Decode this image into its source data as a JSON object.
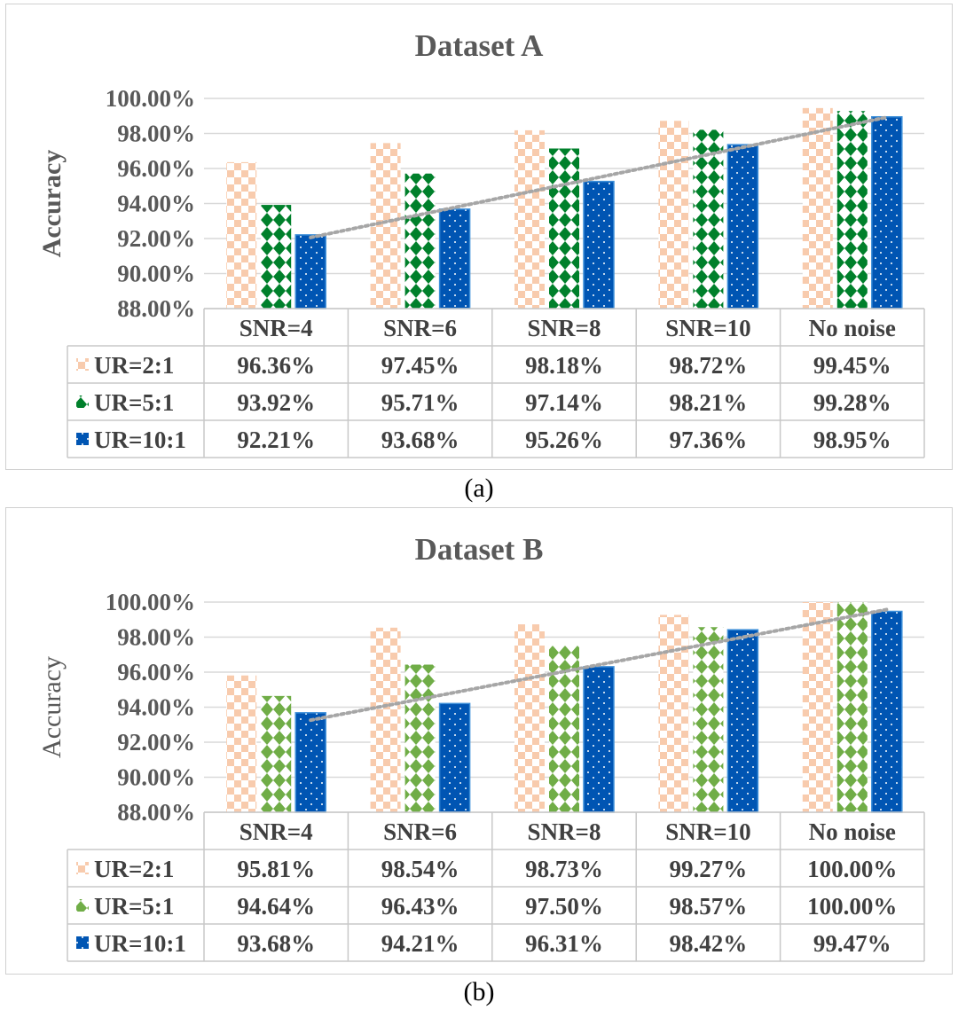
{
  "captions": [
    "(a)",
    "(b)"
  ],
  "chart_data": [
    {
      "type": "bar",
      "title": "Dataset A",
      "xlabel": "",
      "ylabel": "Accuracy",
      "ylim": [
        88,
        100
      ],
      "yticks": [
        "88.00%",
        "90.00%",
        "92.00%",
        "94.00%",
        "96.00%",
        "98.00%",
        "100.00%"
      ],
      "categories": [
        "SNR=4",
        "SNR=6",
        "SNR=8",
        "SNR=10",
        "No noise"
      ],
      "series": [
        {
          "name": "UR=2:1",
          "values": [
            96.36,
            97.45,
            98.18,
            98.72,
            99.45
          ],
          "labels": [
            "96.36%",
            "97.45%",
            "98.18%",
            "98.72%",
            "99.45%"
          ],
          "color": "#f8cbad",
          "pattern": "checker"
        },
        {
          "name": "UR=5:1",
          "values": [
            93.92,
            95.71,
            97.14,
            98.21,
            99.28
          ],
          "labels": [
            "93.92%",
            "95.71%",
            "97.14%",
            "98.21%",
            "99.28%"
          ],
          "color": "#00802b",
          "pattern": "diamond"
        },
        {
          "name": "UR=10:1",
          "values": [
            92.21,
            93.68,
            95.26,
            97.36,
            98.95
          ],
          "labels": [
            "92.21%",
            "93.68%",
            "95.26%",
            "97.36%",
            "98.95%"
          ],
          "color": "#0055b3",
          "pattern": "dots"
        }
      ],
      "trendline": {
        "series": "UR=10:1",
        "style": "dotted",
        "color": "#a6a6a6"
      },
      "grid": true,
      "legend": "data-table"
    },
    {
      "type": "bar",
      "title": "Dataset B",
      "xlabel": "",
      "ylabel": "Accuracy",
      "ylim": [
        88,
        100
      ],
      "yticks": [
        "88.00%",
        "90.00%",
        "92.00%",
        "94.00%",
        "96.00%",
        "98.00%",
        "100.00%"
      ],
      "categories": [
        "SNR=4",
        "SNR=6",
        "SNR=8",
        "SNR=10",
        "No noise"
      ],
      "series": [
        {
          "name": "UR=2:1",
          "values": [
            95.81,
            98.54,
            98.73,
            99.27,
            100.0
          ],
          "labels": [
            "95.81%",
            "98.54%",
            "98.73%",
            "99.27%",
            "100.00%"
          ],
          "color": "#f8cbad",
          "pattern": "checker"
        },
        {
          "name": "UR=5:1",
          "values": [
            94.64,
            96.43,
            97.5,
            98.57,
            100.0
          ],
          "labels": [
            "94.64%",
            "96.43%",
            "97.50%",
            "98.57%",
            "100.00%"
          ],
          "color": "#70ad47",
          "pattern": "diamond"
        },
        {
          "name": "UR=10:1",
          "values": [
            93.68,
            94.21,
            96.31,
            98.42,
            99.47
          ],
          "labels": [
            "93.68%",
            "94.21%",
            "96.31%",
            "98.42%",
            "99.47%"
          ],
          "color": "#0055b3",
          "pattern": "dots"
        }
      ],
      "trendline": {
        "series": "UR=10:1",
        "style": "dotted",
        "color": "#a6a6a6"
      },
      "grid": true,
      "legend": "data-table"
    }
  ]
}
